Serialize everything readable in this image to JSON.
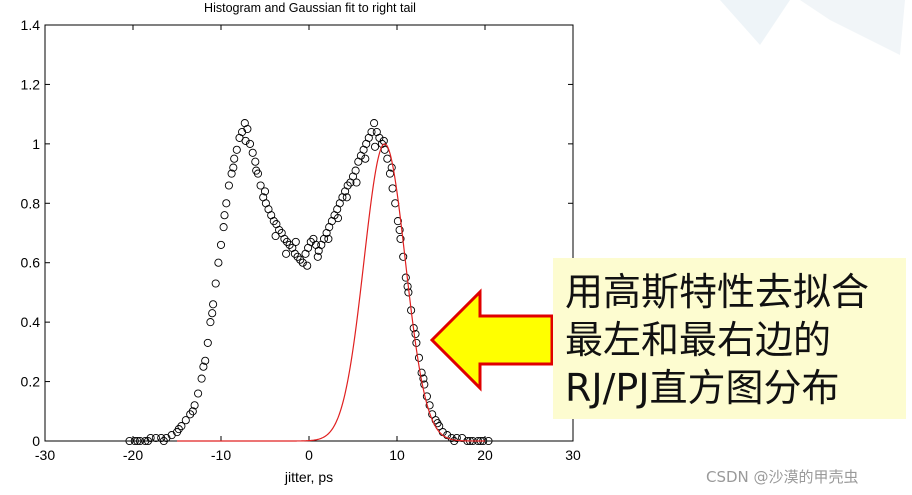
{
  "chart_data": {
    "type": "scatter",
    "title": "Histogram and Gaussian fit to right tail",
    "xlabel": "jitter, ps",
    "ylabel": "",
    "xlim": [
      -30,
      30
    ],
    "ylim": [
      0,
      1.4
    ],
    "x_ticks": [
      "-30",
      "-20",
      "-10",
      "0",
      "10",
      "20",
      "30"
    ],
    "y_ticks": [
      "0",
      "0.2",
      "0.4",
      "0.6",
      "0.8",
      "1",
      "1.2",
      "1.4"
    ],
    "grid": false,
    "series": [
      {
        "marker": "circle",
        "color": "#000000",
        "points": [
          [
            -20.4,
            0.0
          ],
          [
            -19.8,
            0.0
          ],
          [
            -19.2,
            0.0
          ],
          [
            -18.6,
            0.0
          ],
          [
            -18.0,
            0.01
          ],
          [
            -17.4,
            0.01
          ],
          [
            -16.8,
            0.01
          ],
          [
            -16.2,
            0.01
          ],
          [
            -15.6,
            0.02
          ],
          [
            -15.0,
            0.03
          ],
          [
            -14.5,
            0.05
          ],
          [
            -14.0,
            0.07
          ],
          [
            -13.5,
            0.09
          ],
          [
            -13.0,
            0.12
          ],
          [
            -12.6,
            0.16
          ],
          [
            -12.2,
            0.21
          ],
          [
            -11.8,
            0.27
          ],
          [
            -11.5,
            0.33
          ],
          [
            -11.2,
            0.4
          ],
          [
            -10.9,
            0.46
          ],
          [
            -10.6,
            0.53
          ],
          [
            -10.3,
            0.6
          ],
          [
            -10.0,
            0.66
          ],
          [
            -9.7,
            0.72
          ],
          [
            -9.4,
            0.8
          ],
          [
            -9.1,
            0.86
          ],
          [
            -8.8,
            0.9
          ],
          [
            -8.5,
            0.95
          ],
          [
            -8.2,
            0.98
          ],
          [
            -7.9,
            1.02
          ],
          [
            -7.6,
            1.04
          ],
          [
            -7.3,
            1.07
          ],
          [
            -7.0,
            1.05
          ],
          [
            -6.7,
            1.0
          ],
          [
            -6.4,
            0.97
          ],
          [
            -6.1,
            0.94
          ],
          [
            -5.8,
            0.9
          ],
          [
            -5.5,
            0.86
          ],
          [
            -5.2,
            0.82
          ],
          [
            -4.9,
            0.8
          ],
          [
            -4.6,
            0.78
          ],
          [
            -4.3,
            0.76
          ],
          [
            -4.0,
            0.74
          ],
          [
            -3.7,
            0.73
          ],
          [
            -3.4,
            0.71
          ],
          [
            -3.1,
            0.7
          ],
          [
            -2.8,
            0.68
          ],
          [
            -2.5,
            0.67
          ],
          [
            -2.2,
            0.66
          ],
          [
            -1.9,
            0.65
          ],
          [
            -1.6,
            0.63
          ],
          [
            -1.3,
            0.62
          ],
          [
            -1.0,
            0.61
          ],
          [
            -0.7,
            0.6
          ],
          [
            -0.4,
            0.63
          ],
          [
            -0.1,
            0.65
          ],
          [
            0.2,
            0.67
          ],
          [
            0.5,
            0.68
          ],
          [
            0.8,
            0.66
          ],
          [
            1.1,
            0.64
          ],
          [
            1.4,
            0.66
          ],
          [
            1.7,
            0.68
          ],
          [
            2.0,
            0.7
          ],
          [
            2.3,
            0.72
          ],
          [
            2.6,
            0.74
          ],
          [
            2.9,
            0.76
          ],
          [
            3.2,
            0.78
          ],
          [
            3.5,
            0.8
          ],
          [
            3.8,
            0.82
          ],
          [
            4.1,
            0.84
          ],
          [
            4.4,
            0.86
          ],
          [
            4.7,
            0.87
          ],
          [
            5.0,
            0.89
          ],
          [
            5.3,
            0.91
          ],
          [
            5.6,
            0.94
          ],
          [
            5.9,
            0.96
          ],
          [
            6.2,
            0.98
          ],
          [
            6.5,
            1.0
          ],
          [
            6.8,
            1.02
          ],
          [
            7.1,
            1.04
          ],
          [
            7.4,
            1.07
          ],
          [
            7.7,
            1.04
          ],
          [
            8.0,
            1.02
          ],
          [
            8.3,
            1.0
          ],
          [
            8.6,
            0.98
          ],
          [
            8.9,
            0.95
          ],
          [
            9.2,
            0.9
          ],
          [
            9.5,
            0.85
          ],
          [
            9.8,
            0.8
          ],
          [
            10.1,
            0.74
          ],
          [
            10.4,
            0.68
          ],
          [
            10.7,
            0.62
          ],
          [
            11.0,
            0.55
          ],
          [
            11.3,
            0.5
          ],
          [
            11.6,
            0.44
          ],
          [
            11.9,
            0.38
          ],
          [
            12.2,
            0.33
          ],
          [
            12.5,
            0.28
          ],
          [
            12.8,
            0.23
          ],
          [
            13.1,
            0.19
          ],
          [
            13.4,
            0.15
          ],
          [
            13.7,
            0.12
          ],
          [
            14.0,
            0.09
          ],
          [
            14.4,
            0.07
          ],
          [
            14.8,
            0.05
          ],
          [
            15.2,
            0.03
          ],
          [
            15.7,
            0.02
          ],
          [
            16.2,
            0.01
          ],
          [
            16.8,
            0.01
          ],
          [
            17.4,
            0.01
          ],
          [
            18.0,
            0.0
          ],
          [
            18.6,
            0.0
          ],
          [
            19.2,
            0.0
          ],
          [
            19.8,
            0.0
          ],
          [
            20.4,
            0.0
          ],
          [
            -9.6,
            0.76
          ],
          [
            -8.6,
            0.92
          ],
          [
            -7.2,
            1.01
          ],
          [
            -6.0,
            0.91
          ],
          [
            -5.0,
            0.84
          ],
          [
            -3.8,
            0.69
          ],
          [
            -2.6,
            0.63
          ],
          [
            -1.5,
            0.67
          ],
          [
            -0.2,
            0.59
          ],
          [
            1.0,
            0.62
          ],
          [
            2.2,
            0.68
          ],
          [
            3.3,
            0.75
          ],
          [
            4.3,
            0.82
          ],
          [
            5.4,
            0.87
          ],
          [
            6.4,
            0.95
          ],
          [
            7.5,
            0.99
          ],
          [
            8.5,
            1.01
          ],
          [
            9.4,
            0.92
          ],
          [
            10.3,
            0.71
          ],
          [
            11.2,
            0.52
          ],
          [
            12.1,
            0.36
          ],
          [
            13.0,
            0.21
          ],
          [
            -11.0,
            0.43
          ],
          [
            -12.0,
            0.25
          ],
          [
            -13.2,
            0.1
          ],
          [
            -14.8,
            0.04
          ],
          [
            -16.5,
            0.0
          ],
          [
            -18.3,
            0.0
          ],
          [
            14.6,
            0.06
          ],
          [
            16.5,
            0.0
          ],
          [
            18.3,
            0.0
          ],
          [
            -19.5,
            0.0
          ],
          [
            19.5,
            0.0
          ]
        ]
      },
      {
        "type": "line",
        "color": "#e02020",
        "function": "gaussian",
        "amplitude": 1.0,
        "mean": 8.6,
        "sigma": 2.35,
        "x_range": [
          -15,
          20
        ]
      }
    ]
  },
  "callout": {
    "lines": [
      "用高斯特性去拟合",
      "最左和最右边的",
      "RJ/PJ直方图分布"
    ],
    "arrow_fill": "#ffff00",
    "arrow_stroke": "#e00000",
    "box_fill": "#fdfcd0"
  },
  "watermark": "CSDN @沙漠的甲壳虫"
}
